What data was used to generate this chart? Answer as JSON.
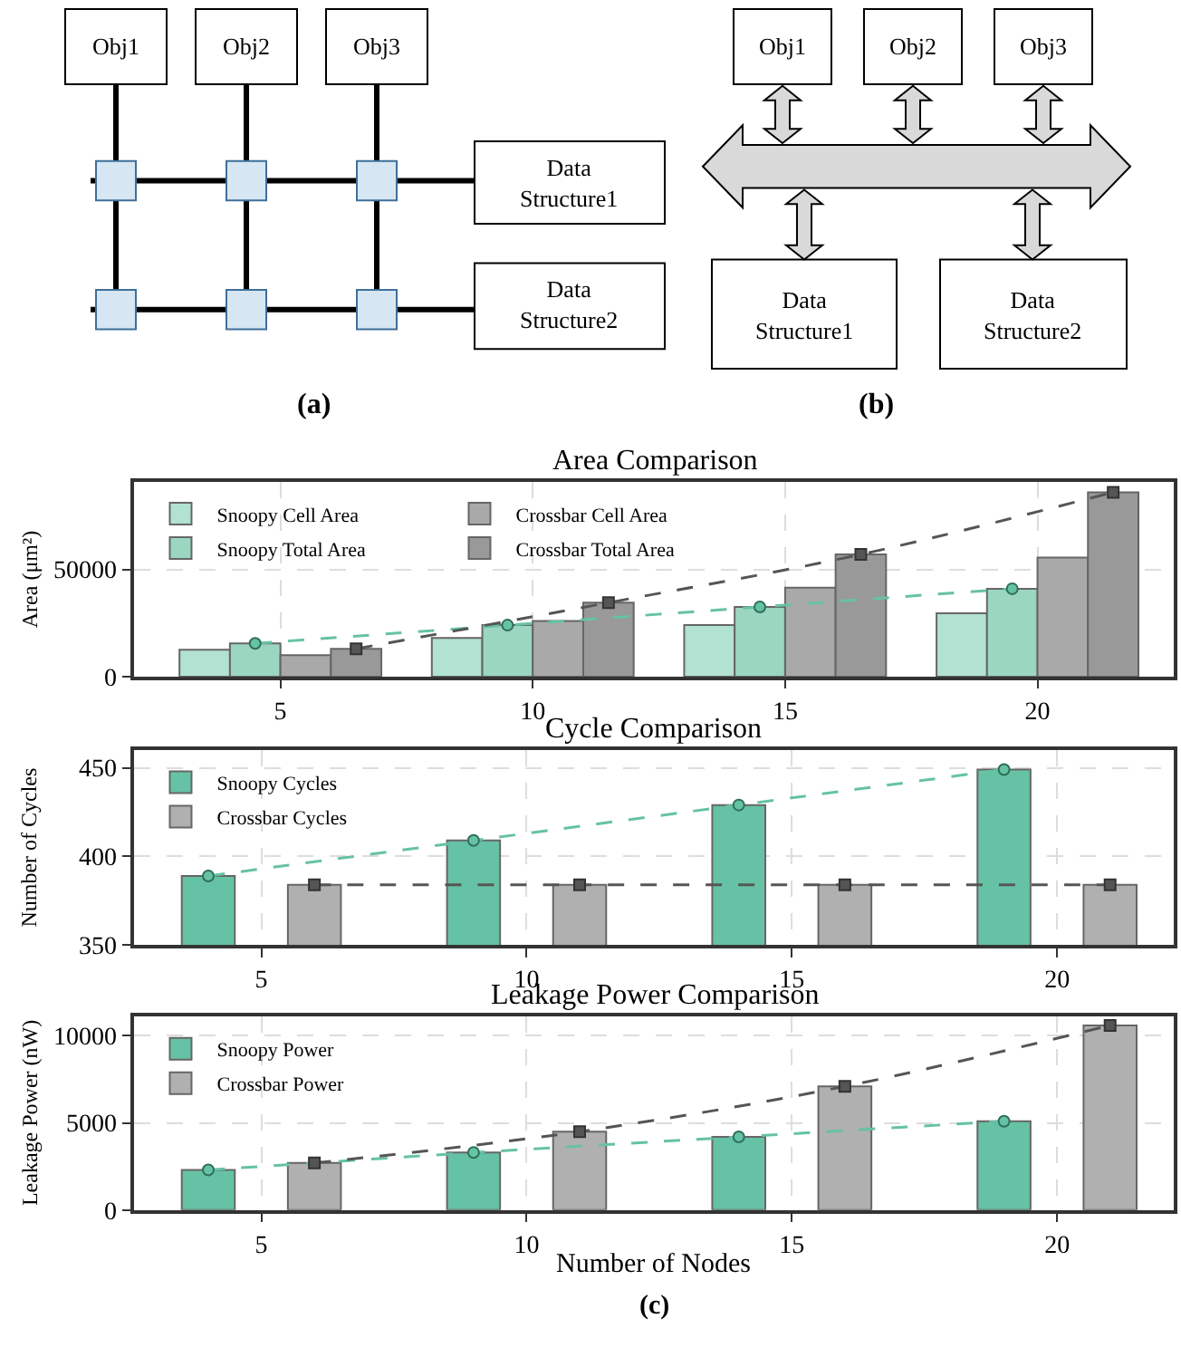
{
  "chart_data": [
    {
      "type": "other",
      "annotations": [
        "Obj1",
        "Obj2",
        "Obj3",
        "Data Structure1",
        "Data Structure2",
        "(a)"
      ]
    },
    {
      "type": "other",
      "annotations": [
        "Obj1",
        "Obj2",
        "Obj3",
        "Data Structure1",
        "Data Structure2",
        "(b)"
      ]
    },
    {
      "type": "bar",
      "title": "Area Comparison",
      "ylabel": "Area (μm²)",
      "xlim": [
        2.1,
        22.7
      ],
      "xticks": [
        5,
        10,
        15,
        20
      ],
      "ylim": [
        0,
        91000
      ],
      "yticks": [
        0,
        50000
      ],
      "grid": true,
      "legend": "top left",
      "series": [
        {
          "name": "Snoopy Cell Area",
          "color": "#b2e2d2",
          "x": [
            3.5,
            8.5,
            13.5,
            18.5
          ],
          "values": [
            12500,
            18000,
            24000,
            29500
          ]
        },
        {
          "name": "Snoopy Total Area",
          "color": "#9bd6c0",
          "x": [
            4.5,
            9.5,
            14.5,
            19.5
          ],
          "values": [
            15500,
            24000,
            32500,
            41000
          ]
        },
        {
          "name": "Crossbar Cell Area",
          "color": "#a9a9a9",
          "x": [
            5.5,
            10.5,
            15.5,
            20.5
          ],
          "values": [
            10000,
            26000,
            41500,
            55500
          ]
        },
        {
          "name": "Crossbar Total Area",
          "color": "#999999",
          "x": [
            6.5,
            11.5,
            16.5,
            21.5
          ],
          "values": [
            13000,
            34500,
            57000,
            86000
          ]
        },
        {
          "type": "line",
          "color": "#66c2a5",
          "marker": "circle",
          "line_style": "dashed",
          "x": [
            4.5,
            9.5,
            14.5,
            19.5
          ],
          "values": [
            15500,
            24000,
            32500,
            41000
          ]
        },
        {
          "type": "line",
          "color": "#555555",
          "marker": "square",
          "line_style": "dashed",
          "x": [
            6.5,
            11.5,
            16.5,
            21.5
          ],
          "values": [
            13000,
            34500,
            57000,
            86000
          ]
        }
      ]
    },
    {
      "type": "bar",
      "title": "Cycle Comparison",
      "ylabel": "Number of Cycles",
      "xlim": [
        2.6,
        22.2
      ],
      "xticks": [
        5,
        10,
        15,
        20
      ],
      "ylim": [
        350,
        460
      ],
      "yticks": [
        350,
        400,
        450
      ],
      "grid": true,
      "legend": "top left",
      "series": [
        {
          "name": "Snoopy Cycles",
          "color": "#66c2a5",
          "x": [
            4,
            9,
            14,
            19
          ],
          "values": [
            389,
            409,
            429,
            449
          ]
        },
        {
          "name": "Crossbar Cycles",
          "color": "#b0b0b0",
          "x": [
            6,
            11,
            16,
            21
          ],
          "values": [
            384,
            384,
            384,
            384
          ]
        },
        {
          "type": "line",
          "color": "#66c2a5",
          "marker": "circle",
          "line_style": "dashed",
          "x": [
            4,
            9,
            14,
            19
          ],
          "values": [
            389,
            409,
            429,
            449
          ]
        },
        {
          "type": "line",
          "color": "#555555",
          "marker": "square",
          "line_style": "dashed",
          "x": [
            6,
            11,
            16,
            21
          ],
          "values": [
            384,
            384,
            384,
            384
          ]
        }
      ]
    },
    {
      "type": "bar",
      "title": "Leakage Power Comparison",
      "ylabel": "Leakage Power (nW)",
      "xlabel": "Number of Nodes",
      "xlim": [
        2.6,
        22.2
      ],
      "xticks": [
        5,
        10,
        15,
        20
      ],
      "ylim": [
        0,
        11100
      ],
      "yticks": [
        0,
        5000,
        10000
      ],
      "grid": true,
      "legend": "top left",
      "annotations": [
        "(c)"
      ],
      "series": [
        {
          "name": "Snoopy Power",
          "color": "#66c2a5",
          "x": [
            4,
            9,
            14,
            19
          ],
          "values": [
            2300,
            3300,
            4200,
            5100
          ]
        },
        {
          "name": "Crossbar Power",
          "color": "#b0b0b0",
          "x": [
            6,
            11,
            16,
            21
          ],
          "values": [
            2700,
            4500,
            7100,
            10600
          ]
        },
        {
          "type": "line",
          "color": "#66c2a5",
          "marker": "circle",
          "line_style": "dashed",
          "x": [
            4,
            9,
            14,
            19
          ],
          "values": [
            2300,
            3300,
            4200,
            5100
          ]
        },
        {
          "type": "line",
          "color": "#555555",
          "marker": "square",
          "line_style": "dashed",
          "x": [
            6,
            11,
            16,
            21
          ],
          "values": [
            2700,
            4500,
            7100,
            10600
          ]
        }
      ]
    }
  ]
}
